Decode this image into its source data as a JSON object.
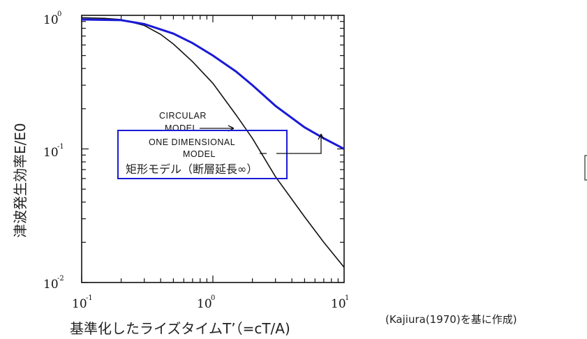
{
  "chart_data": {
    "type": "line",
    "xscale": "log",
    "yscale": "log",
    "xlim": [
      0.1,
      10
    ],
    "ylim": [
      0.01,
      1
    ],
    "x_ticks": [
      {
        "base": "10",
        "exp": "-1"
      },
      {
        "base": "10",
        "exp": "0"
      },
      {
        "base": "10",
        "exp": "1"
      }
    ],
    "y_ticks": [
      {
        "base": "10",
        "exp": "0"
      },
      {
        "base": "10",
        "exp": "-1"
      },
      {
        "base": "10",
        "exp": "-2"
      }
    ],
    "xlabel": "基準化したライズタイムT’（=cT/A)",
    "ylabel": "津波発生効率E/E0",
    "series": [
      {
        "name": "CIRCULAR MODEL",
        "color": "#111111",
        "points": [
          [
            0.1,
            0.96
          ],
          [
            0.15,
            0.95
          ],
          [
            0.2,
            0.93
          ],
          [
            0.3,
            0.84
          ],
          [
            0.4,
            0.72
          ],
          [
            0.5,
            0.61
          ],
          [
            0.7,
            0.45
          ],
          [
            1.0,
            0.31
          ],
          [
            1.5,
            0.18
          ],
          [
            2.0,
            0.12
          ],
          [
            3.0,
            0.062
          ],
          [
            5.0,
            0.031
          ],
          [
            7.0,
            0.02
          ],
          [
            10.0,
            0.013
          ]
        ]
      },
      {
        "name": "ONE DIMENSIONAL MODEL",
        "color": "#1a1ad6",
        "points": [
          [
            0.1,
            0.93
          ],
          [
            0.2,
            0.92
          ],
          [
            0.3,
            0.86
          ],
          [
            0.5,
            0.73
          ],
          [
            0.7,
            0.62
          ],
          [
            1.0,
            0.5
          ],
          [
            1.5,
            0.38
          ],
          [
            2.0,
            0.3
          ],
          [
            3.0,
            0.21
          ],
          [
            5.0,
            0.145
          ],
          [
            7.0,
            0.12
          ],
          [
            10.0,
            0.1
          ]
        ]
      }
    ],
    "annotations": [
      {
        "text_lines": [
          "CIRCULAR",
          "MODEL"
        ],
        "target": "CIRCULAR MODEL"
      },
      {
        "text_lines": [
          "ONE DIMENSIONAL",
          "MODEL"
        ],
        "target": "ONE DIMENSIONAL MODEL"
      }
    ],
    "box_label": "矩形モデル（断層延長∞）",
    "source_note": "(Kajiura(1970)を基に作成)",
    "colors": {
      "box": "#1a1ad6",
      "axes": "#111111"
    }
  }
}
